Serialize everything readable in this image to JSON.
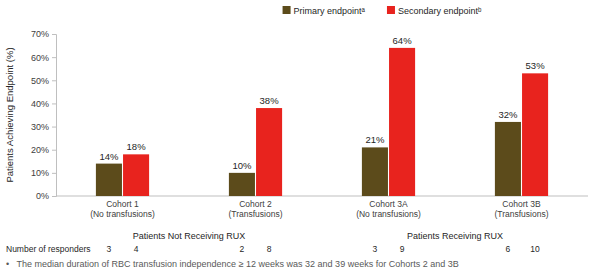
{
  "chart_data": {
    "type": "bar",
    "y_label": "Patients Achieving Endpoint (%)",
    "categories": [
      "Cohort 1\n(No transfusions)",
      "Cohort 2\n(Transfusions)",
      "Cohort 3A\n(No transfusions)",
      "Cohort 3B\n(Transfusions)"
    ],
    "group_labels": [
      "Patients Not Receiving RUX",
      "Patients Receiving RUX"
    ],
    "series": [
      {
        "name": "Primary endpointᵃ",
        "color": "#5c4b1b",
        "values": [
          14,
          10,
          21,
          32
        ],
        "value_labels": [
          "14%",
          "10%",
          "21%",
          "32%"
        ],
        "responders": [
          3,
          2,
          3,
          6
        ]
      },
      {
        "name": "Secondary endpointᵇ",
        "color": "#e8231e",
        "values": [
          18,
          38,
          64,
          53
        ],
        "value_labels": [
          "18%",
          "38%",
          "64%",
          "53%"
        ],
        "responders": [
          4,
          8,
          9,
          10
        ]
      }
    ],
    "responders_label": "Number of responders",
    "footnote": "•   The median duration of RBC transfusion independence ≥ 12 weeks was 32 and 39 weeks for Cohorts 2 and 3B",
    "ylim": [
      0,
      70
    ],
    "yticks": [
      {
        "value": 0,
        "label": "0%"
      },
      {
        "value": 10,
        "label": "10%"
      },
      {
        "value": 20,
        "label": "20%"
      },
      {
        "value": 30,
        "label": "30%"
      },
      {
        "value": 40,
        "label": "40%"
      },
      {
        "value": 50,
        "label": "50%"
      },
      {
        "value": 60,
        "label": "60%"
      },
      {
        "value": 70,
        "label": "70%"
      }
    ],
    "grid": false,
    "legend": "top",
    "data_labels": true
  }
}
